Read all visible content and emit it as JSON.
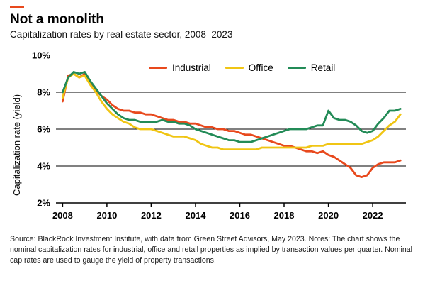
{
  "header": {
    "title": "Not a monolith",
    "subtitle": "Capitalization rates by real estate sector, 2008–2023"
  },
  "colors": {
    "accent": "#E8491D",
    "industrial": "#E8491D",
    "office": "#F0C514",
    "retail": "#238B57",
    "axis": "#000000"
  },
  "chart_data": {
    "type": "line",
    "title": "Not a monolith",
    "subtitle": "Capitalization rates by real estate sector, 2008–2023",
    "xlabel": "",
    "ylabel": "Capitalization rate (yield)",
    "ylim": [
      2,
      10
    ],
    "xlim": [
      2007.7,
      2023.5
    ],
    "grid": "horizontal",
    "gridlines": [
      4,
      6,
      8
    ],
    "legend_position": "top-inside",
    "yticks": [
      {
        "v": 2,
        "label": "2%"
      },
      {
        "v": 4,
        "label": "4%"
      },
      {
        "v": 6,
        "label": "6%"
      },
      {
        "v": 8,
        "label": "8%"
      },
      {
        "v": 10,
        "label": "10%"
      }
    ],
    "xticks": [
      {
        "v": 2008,
        "label": "2008"
      },
      {
        "v": 2010,
        "label": "2010"
      },
      {
        "v": 2012,
        "label": "2012"
      },
      {
        "v": 2014,
        "label": "2014"
      },
      {
        "v": 2016,
        "label": "2016"
      },
      {
        "v": 2018,
        "label": "2018"
      },
      {
        "v": 2020,
        "label": "2020"
      },
      {
        "v": 2022,
        "label": "2022"
      }
    ],
    "x": [
      2008.0,
      2008.25,
      2008.5,
      2008.75,
      2009.0,
      2009.25,
      2009.5,
      2009.75,
      2010.0,
      2010.25,
      2010.5,
      2010.75,
      2011.0,
      2011.25,
      2011.5,
      2011.75,
      2012.0,
      2012.25,
      2012.5,
      2012.75,
      2013.0,
      2013.25,
      2013.5,
      2013.75,
      2014.0,
      2014.25,
      2014.5,
      2014.75,
      2015.0,
      2015.25,
      2015.5,
      2015.75,
      2016.0,
      2016.25,
      2016.5,
      2016.75,
      2017.0,
      2017.25,
      2017.5,
      2017.75,
      2018.0,
      2018.25,
      2018.5,
      2018.75,
      2019.0,
      2019.25,
      2019.5,
      2019.75,
      2020.0,
      2020.25,
      2020.5,
      2020.75,
      2021.0,
      2021.25,
      2021.5,
      2021.75,
      2022.0,
      2022.25,
      2022.5,
      2022.75,
      2023.0,
      2023.25
    ],
    "series": [
      {
        "name": "Industrial",
        "color": "#E8491D",
        "values": [
          7.5,
          8.9,
          9.0,
          8.8,
          9.0,
          8.5,
          8.1,
          7.8,
          7.6,
          7.3,
          7.1,
          7.0,
          7.0,
          6.9,
          6.9,
          6.8,
          6.8,
          6.7,
          6.6,
          6.5,
          6.5,
          6.4,
          6.4,
          6.3,
          6.3,
          6.2,
          6.1,
          6.1,
          6.0,
          6.0,
          5.9,
          5.9,
          5.8,
          5.7,
          5.7,
          5.6,
          5.5,
          5.4,
          5.3,
          5.2,
          5.1,
          5.1,
          5.0,
          4.9,
          4.8,
          4.8,
          4.7,
          4.8,
          4.6,
          4.5,
          4.3,
          4.1,
          3.9,
          3.5,
          3.4,
          3.5,
          3.9,
          4.1,
          4.2,
          4.2,
          4.2,
          4.3
        ]
      },
      {
        "name": "Office",
        "color": "#F0C514",
        "values": [
          7.7,
          8.8,
          9.0,
          8.8,
          8.9,
          8.4,
          8.0,
          7.5,
          7.1,
          6.8,
          6.6,
          6.4,
          6.3,
          6.1,
          6.0,
          6.0,
          6.0,
          5.9,
          5.8,
          5.7,
          5.6,
          5.6,
          5.6,
          5.5,
          5.4,
          5.2,
          5.1,
          5.0,
          5.0,
          4.9,
          4.9,
          4.9,
          4.9,
          4.9,
          4.9,
          4.9,
          5.0,
          5.0,
          5.0,
          5.0,
          5.0,
          5.0,
          5.0,
          5.0,
          5.0,
          5.1,
          5.1,
          5.1,
          5.2,
          5.2,
          5.2,
          5.2,
          5.2,
          5.2,
          5.2,
          5.3,
          5.4,
          5.6,
          5.9,
          6.2,
          6.4,
          6.8
        ]
      },
      {
        "name": "Retail",
        "color": "#238B57",
        "values": [
          8.0,
          8.8,
          9.1,
          9.0,
          9.1,
          8.6,
          8.2,
          7.8,
          7.4,
          7.1,
          6.8,
          6.6,
          6.5,
          6.5,
          6.4,
          6.4,
          6.4,
          6.4,
          6.5,
          6.4,
          6.4,
          6.3,
          6.3,
          6.2,
          6.0,
          5.9,
          5.8,
          5.7,
          5.6,
          5.5,
          5.4,
          5.4,
          5.3,
          5.3,
          5.3,
          5.4,
          5.5,
          5.6,
          5.7,
          5.8,
          5.9,
          6.0,
          6.0,
          6.0,
          6.0,
          6.1,
          6.2,
          6.2,
          7.0,
          6.6,
          6.5,
          6.5,
          6.4,
          6.2,
          5.9,
          5.8,
          5.9,
          6.3,
          6.6,
          7.0,
          7.0,
          7.1
        ]
      }
    ]
  },
  "footer": {
    "source": "Source: BlackRock Investment Institute, with data from Green Street Advisors, May 2023. Notes: The chart shows the nominal capitalization rates for industrial, office and retail properties as implied by transaction values per quarter. Nominal cap rates are used to gauge the yield of property transactions."
  }
}
